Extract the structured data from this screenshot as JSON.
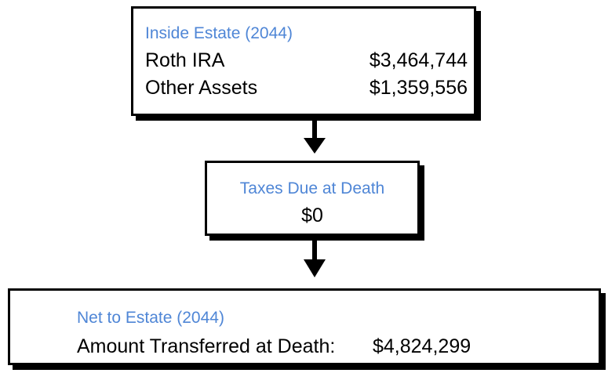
{
  "nodes": [
    {
      "title": "Inside Estate (2044)",
      "rows": [
        [
          "Roth IRA",
          "$3,464,744"
        ],
        [
          "Other Assets",
          "$1,359,556"
        ]
      ]
    },
    {
      "title": "Taxes Due at Death",
      "value": "$0"
    },
    {
      "title": "Net to Estate (2044)",
      "rows": [
        [
          "Amount Transferred at Death:",
          "$4,824,299"
        ]
      ]
    }
  ]
}
